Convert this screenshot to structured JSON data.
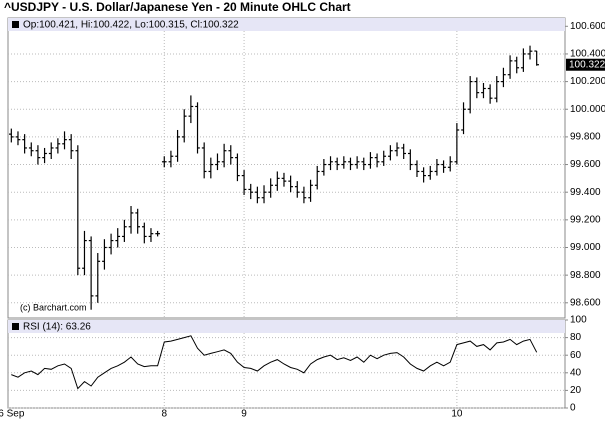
{
  "chart_data": [
    {
      "type": "ohlc",
      "title": "^USDJPY - U.S. Dollar/Japanese Yen - 20 Minute OHLC Chart",
      "legend_text": "Op:100.421, Hi:100.422, Lo:100.315, Cl:100.322",
      "watermark": "(c) Barchart.com",
      "categories": [
        "6 Sep",
        null,
        null,
        null,
        null,
        null,
        null,
        null,
        null,
        null,
        null,
        null,
        null,
        null,
        null,
        null,
        null,
        null,
        null,
        null,
        null,
        null,
        null,
        "8",
        null,
        null,
        null,
        null,
        null,
        null,
        null,
        null,
        null,
        null,
        null,
        "9",
        null,
        null,
        null,
        null,
        null,
        null,
        null,
        null,
        null,
        null,
        null,
        null,
        null,
        null,
        null,
        null,
        null,
        null,
        null,
        null,
        null,
        null,
        null,
        null,
        null,
        null,
        null,
        null,
        null,
        null,
        null,
        "10",
        null,
        null,
        null,
        null,
        null,
        null,
        null,
        null,
        null,
        null,
        null,
        null
      ],
      "open": [
        99.82,
        99.8,
        99.78,
        99.72,
        99.7,
        99.65,
        99.68,
        99.72,
        99.75,
        99.78,
        99.7,
        98.85,
        99.05,
        98.65,
        98.9,
        99.0,
        99.05,
        99.08,
        99.15,
        99.25,
        99.15,
        99.08,
        99.1,
        99.62,
        99.62,
        99.66,
        99.8,
        99.95,
        100.02,
        99.72,
        99.55,
        99.6,
        99.62,
        99.7,
        99.65,
        99.52,
        99.42,
        99.4,
        99.36,
        99.4,
        99.45,
        99.5,
        99.48,
        99.44,
        99.4,
        99.36,
        99.45,
        99.55,
        99.6,
        99.62,
        99.6,
        99.62,
        99.6,
        99.62,
        99.6,
        99.65,
        99.62,
        99.66,
        99.7,
        99.72,
        99.68,
        99.6,
        99.55,
        99.52,
        99.55,
        99.6,
        99.58,
        99.62,
        99.85,
        100.0,
        100.2,
        100.12,
        100.15,
        100.08,
        100.2,
        100.25,
        100.35,
        100.3,
        100.4,
        100.421
      ],
      "high": [
        99.86,
        99.84,
        99.82,
        99.76,
        99.74,
        99.72,
        99.76,
        99.79,
        99.84,
        99.82,
        99.74,
        99.12,
        99.08,
        98.96,
        99.06,
        99.1,
        99.14,
        99.2,
        99.3,
        99.28,
        99.18,
        99.14,
        99.12,
        99.66,
        99.7,
        99.85,
        100.0,
        100.1,
        100.05,
        99.76,
        99.65,
        99.68,
        99.75,
        99.74,
        99.68,
        99.56,
        99.46,
        99.44,
        99.45,
        99.5,
        99.55,
        99.54,
        99.52,
        99.48,
        99.44,
        99.49,
        99.59,
        99.64,
        99.66,
        99.65,
        99.66,
        99.65,
        99.66,
        99.65,
        99.69,
        99.68,
        99.7,
        99.74,
        99.76,
        99.75,
        99.71,
        99.63,
        99.58,
        99.59,
        99.64,
        99.63,
        99.66,
        99.9,
        100.05,
        100.24,
        100.23,
        100.19,
        100.18,
        100.24,
        100.3,
        100.39,
        100.38,
        100.44,
        100.46,
        100.422
      ],
      "low": [
        99.76,
        99.74,
        99.68,
        99.66,
        99.6,
        99.61,
        99.64,
        99.68,
        99.71,
        99.64,
        98.8,
        98.8,
        98.55,
        98.6,
        98.84,
        98.95,
        99.0,
        99.04,
        99.1,
        99.1,
        99.03,
        99.04,
        99.08,
        99.58,
        99.58,
        99.62,
        99.76,
        99.9,
        99.68,
        99.5,
        99.5,
        99.56,
        99.58,
        99.6,
        99.48,
        99.38,
        99.35,
        99.32,
        99.32,
        99.36,
        99.41,
        99.44,
        99.4,
        99.36,
        99.32,
        99.33,
        99.42,
        99.52,
        99.56,
        99.56,
        99.57,
        99.56,
        99.57,
        99.56,
        99.57,
        99.58,
        99.59,
        99.63,
        99.66,
        99.64,
        99.56,
        99.51,
        99.47,
        99.49,
        99.52,
        99.54,
        99.55,
        99.6,
        99.82,
        99.97,
        100.08,
        100.08,
        100.04,
        100.05,
        100.16,
        100.22,
        100.26,
        100.27,
        100.36,
        100.315
      ],
      "close": [
        99.8,
        99.78,
        99.72,
        99.7,
        99.65,
        99.68,
        99.72,
        99.75,
        99.78,
        99.7,
        98.85,
        99.05,
        98.65,
        98.9,
        99.0,
        99.05,
        99.08,
        99.15,
        99.25,
        99.15,
        99.08,
        99.1,
        99.1,
        99.62,
        99.66,
        99.8,
        99.95,
        100.02,
        99.72,
        99.55,
        99.6,
        99.62,
        99.7,
        99.65,
        99.52,
        99.42,
        99.4,
        99.36,
        99.4,
        99.45,
        99.5,
        99.48,
        99.44,
        99.4,
        99.36,
        99.45,
        99.55,
        99.6,
        99.62,
        99.6,
        99.62,
        99.6,
        99.62,
        99.6,
        99.65,
        99.62,
        99.66,
        99.7,
        99.72,
        99.68,
        99.6,
        99.55,
        99.52,
        99.55,
        99.6,
        99.58,
        99.62,
        99.85,
        100.0,
        100.2,
        100.12,
        100.15,
        100.08,
        100.2,
        100.25,
        100.35,
        100.3,
        100.4,
        100.42,
        100.322
      ],
      "ylim": [
        98.49,
        100.66
      ],
      "yticks": [
        {
          "value": 98.6,
          "label": "98.600"
        },
        {
          "value": 98.8,
          "label": "98.800"
        },
        {
          "value": 99.0,
          "label": "99.000"
        },
        {
          "value": 99.2,
          "label": "99.200"
        },
        {
          "value": 99.4,
          "label": "99.400"
        },
        {
          "value": 99.6,
          "label": "99.600"
        },
        {
          "value": 99.8,
          "label": "99.800"
        },
        {
          "value": 100.0,
          "label": "100.000"
        },
        {
          "value": 100.2,
          "label": "100.200"
        },
        {
          "value": 100.4,
          "label": "100.400"
        },
        {
          "value": 100.6,
          "label": "100.600"
        }
      ],
      "grid": true,
      "color": "#000000"
    },
    {
      "type": "line",
      "legend_text": "RSI (14): 63.26",
      "values": [
        38,
        35,
        40,
        42,
        38,
        45,
        44,
        48,
        50,
        45,
        22,
        30,
        25,
        35,
        40,
        45,
        48,
        52,
        58,
        50,
        47,
        48,
        48,
        75,
        76,
        78,
        80,
        82,
        68,
        60,
        62,
        64,
        66,
        62,
        52,
        46,
        45,
        42,
        48,
        52,
        55,
        50,
        46,
        44,
        40,
        50,
        55,
        58,
        60,
        55,
        57,
        54,
        58,
        52,
        60,
        56,
        60,
        62,
        63,
        58,
        50,
        45,
        42,
        48,
        52,
        48,
        52,
        72,
        74,
        76,
        70,
        72,
        66,
        74,
        75,
        78,
        72,
        76,
        78,
        63.26
      ],
      "ylim": [
        0,
        100
      ],
      "yticks": [
        0,
        20,
        40,
        60,
        80,
        100
      ],
      "grid": true,
      "color": "#000000"
    }
  ]
}
